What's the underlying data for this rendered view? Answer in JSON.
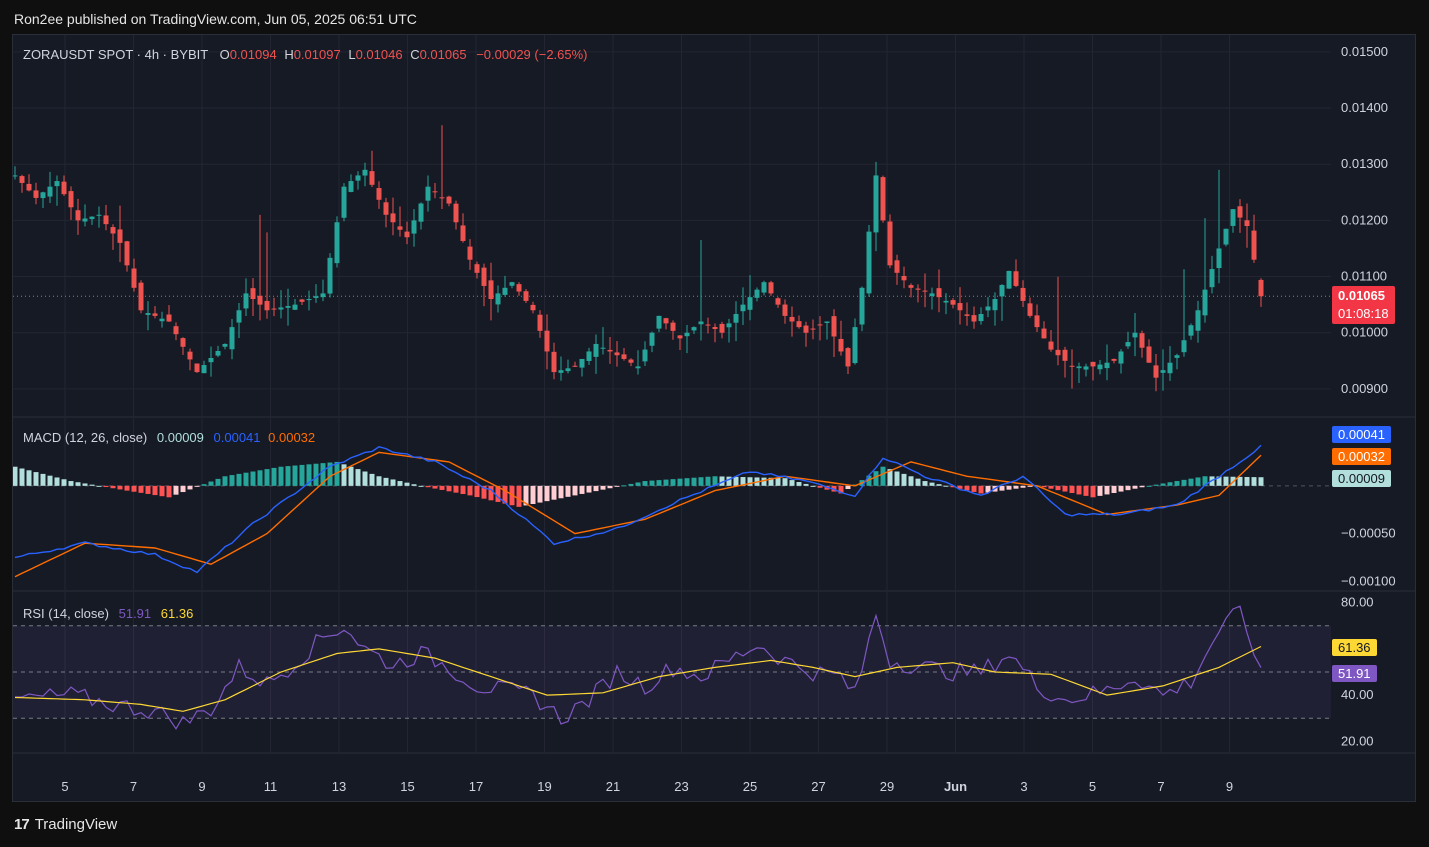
{
  "header": {
    "published": "Ron2ee published on TradingView.com, Jun 05, 2025 06:51 UTC"
  },
  "footer": {
    "brand": "TradingView",
    "logo": "17"
  },
  "legend": {
    "symbol": "ZORAUSDT SPOT · 4h · BYBIT",
    "o_label": "O",
    "o": "0.01094",
    "h_label": "H",
    "h": "0.01097",
    "l_label": "L",
    "l": "0.01046",
    "c_label": "C",
    "c": "0.01065",
    "change": "−0.00029 (−2.65%)",
    "macd_title": "MACD (12, 26, close)",
    "macd_hist": "0.00009",
    "macd_line": "0.00041",
    "macd_signal": "0.00032",
    "rsi_title": "RSI (14, close)",
    "rsi_value": "51.91",
    "rsi_ma": "61.36"
  },
  "tags": {
    "price": "0.01065",
    "countdown": "01:08:18",
    "macd_line": "0.00041",
    "macd_signal": "0.00032",
    "macd_hist": "0.00009",
    "rsi_ma": "61.36",
    "rsi": "51.91"
  },
  "colors": {
    "up": "#26a69a",
    "down": "#ef5350",
    "macd": "#2962ff",
    "signal": "#ff6d00",
    "rsi": "#7e57c2",
    "rsi_ma": "#fdd835",
    "text": "#d1d4dc",
    "grid": "#232632"
  },
  "chart_data": [
    {
      "type": "candlestick",
      "title": "ZORAUSDT SPOT · 4h · BYBIT",
      "ylim": [
        0.0085,
        0.0153
      ],
      "yticks": [
        "0.00900",
        "0.01000",
        "0.01100",
        "0.01200",
        "0.01300",
        "0.01400",
        "0.01500"
      ],
      "xticks": [
        "5",
        "7",
        "9",
        "11",
        "13",
        "15",
        "17",
        "19",
        "21",
        "23",
        "25",
        "27",
        "29",
        "Jun",
        "3",
        "5",
        "7",
        "9"
      ],
      "anchors": [
        [
          0,
          0.0128
        ],
        [
          3,
          0.0124
        ],
        [
          6,
          0.0127
        ],
        [
          9,
          0.012
        ],
        [
          12,
          0.0121
        ],
        [
          15,
          0.0116
        ],
        [
          18,
          0.0104
        ],
        [
          22,
          0.0102
        ],
        [
          26,
          0.0093
        ],
        [
          30,
          0.0098
        ],
        [
          33,
          0.0107
        ],
        [
          36,
          0.0104
        ],
        [
          40,
          0.0105
        ],
        [
          44,
          0.0107
        ],
        [
          47,
          0.0126
        ],
        [
          50,
          0.0129
        ],
        [
          53,
          0.0121
        ],
        [
          56,
          0.0117
        ],
        [
          59,
          0.0126
        ],
        [
          62,
          0.0123
        ],
        [
          65,
          0.0113
        ],
        [
          68,
          0.0106
        ],
        [
          71,
          0.0109
        ],
        [
          74,
          0.0104
        ],
        [
          77,
          0.0093
        ],
        [
          80,
          0.0094
        ],
        [
          83,
          0.0098
        ],
        [
          86,
          0.0096
        ],
        [
          89,
          0.0094
        ],
        [
          92,
          0.0103
        ],
        [
          95,
          0.0099
        ],
        [
          98,
          0.0102
        ],
        [
          101,
          0.01
        ],
        [
          104,
          0.0105
        ],
        [
          107,
          0.0109
        ],
        [
          110,
          0.0103
        ],
        [
          113,
          0.01
        ],
        [
          116,
          0.0102
        ],
        [
          119,
          0.0094
        ],
        [
          121,
          0.0108
        ],
        [
          123,
          0.0128
        ],
        [
          125,
          0.0112
        ],
        [
          128,
          0.0108
        ],
        [
          131,
          0.0107
        ],
        [
          134,
          0.0105
        ],
        [
          137,
          0.0102
        ],
        [
          140,
          0.0106
        ],
        [
          142,
          0.0111
        ],
        [
          145,
          0.0103
        ],
        [
          148,
          0.0097
        ],
        [
          151,
          0.0094
        ],
        [
          154,
          0.0094
        ],
        [
          157,
          0.0095
        ],
        [
          160,
          0.01
        ],
        [
          163,
          0.0092
        ],
        [
          166,
          0.0096
        ],
        [
          169,
          0.0104
        ],
        [
          172,
          0.0115
        ],
        [
          174,
          0.0122
        ],
        [
          176,
          0.0119
        ],
        [
          178,
          0.0107
        ]
      ],
      "last": {
        "open": 0.01094,
        "high": 0.01097,
        "low": 0.01046,
        "close": 0.01065,
        "change": "−0.00029 (−2.65%)"
      }
    },
    {
      "type": "line",
      "title": "MACD (12, 26, close)",
      "ylim": [
        -0.0011,
        0.00072
      ],
      "yticks": [
        "−0.00050",
        "−0.00100"
      ],
      "series": [
        {
          "name": "MACD",
          "anchors": [
            [
              0,
              -0.00075
            ],
            [
              10,
              -0.0006
            ],
            [
              20,
              -0.00072
            ],
            [
              26,
              -0.0009
            ],
            [
              34,
              -0.0004
            ],
            [
              45,
              0.0002
            ],
            [
              52,
              0.0004
            ],
            [
              60,
              0.00025
            ],
            [
              68,
              -5e-05
            ],
            [
              77,
              -0.0006
            ],
            [
              86,
              -0.00045
            ],
            [
              95,
              -0.00015
            ],
            [
              105,
              0.00015
            ],
            [
              113,
              5e-05
            ],
            [
              120,
              -0.0001
            ],
            [
              124,
              0.0003
            ],
            [
              130,
              0.0001
            ],
            [
              138,
              -0.0001
            ],
            [
              144,
              0.0001
            ],
            [
              150,
              -0.0003
            ],
            [
              158,
              -0.0003
            ],
            [
              166,
              -0.0002
            ],
            [
              172,
              0.0001
            ],
            [
              178,
              0.00041
            ]
          ]
        },
        {
          "name": "Signal",
          "anchors": [
            [
              0,
              -0.00095
            ],
            [
              10,
              -0.0006
            ],
            [
              20,
              -0.00065
            ],
            [
              28,
              -0.00082
            ],
            [
              36,
              -0.0005
            ],
            [
              45,
              0.0001
            ],
            [
              52,
              0.00035
            ],
            [
              62,
              0.00025
            ],
            [
              70,
              -5e-05
            ],
            [
              80,
              -0.0005
            ],
            [
              90,
              -0.00035
            ],
            [
              100,
              -5e-05
            ],
            [
              110,
              0.0001
            ],
            [
              120,
              0.0
            ],
            [
              128,
              0.00025
            ],
            [
              136,
              0.0001
            ],
            [
              146,
              0.0
            ],
            [
              156,
              -0.0003
            ],
            [
              166,
              -0.0002
            ],
            [
              172,
              -0.0001
            ],
            [
              178,
              0.00032
            ]
          ]
        },
        {
          "name": "Histogram",
          "anchors": [
            [
              0,
              0.0002
            ],
            [
              8,
              5e-05
            ],
            [
              16,
              -5e-05
            ],
            [
              22,
              -0.00012
            ],
            [
              30,
              0.0001
            ],
            [
              38,
              0.0002
            ],
            [
              46,
              0.00025
            ],
            [
              52,
              0.0001
            ],
            [
              58,
              0.0
            ],
            [
              65,
              -0.0001
            ],
            [
              72,
              -0.00022
            ],
            [
              80,
              -0.0001
            ],
            [
              90,
              5e-05
            ],
            [
              100,
              0.0001
            ],
            [
              110,
              8e-05
            ],
            [
              118,
              -8e-05
            ],
            [
              124,
              0.0002
            ],
            [
              130,
              5e-05
            ],
            [
              138,
              -8e-05
            ],
            [
              146,
              0.0
            ],
            [
              154,
              -0.00012
            ],
            [
              162,
              0.0
            ],
            [
              170,
              0.0001
            ],
            [
              178,
              9e-05
            ]
          ]
        }
      ]
    },
    {
      "type": "line",
      "title": "RSI (14, close)",
      "ylim": [
        15,
        85
      ],
      "yticks": [
        "80.00",
        "40.00",
        "20.00"
      ],
      "bands": [
        30,
        50,
        70
      ],
      "series": [
        {
          "name": "RSI",
          "anchors": [
            [
              0,
              38
            ],
            [
              8,
              40
            ],
            [
              14,
              36
            ],
            [
              20,
              33
            ],
            [
              24,
              28
            ],
            [
              28,
              34
            ],
            [
              32,
              52
            ],
            [
              36,
              45
            ],
            [
              40,
              54
            ],
            [
              44,
              65
            ],
            [
              47,
              70
            ],
            [
              50,
              60
            ],
            [
              54,
              53
            ],
            [
              58,
              58
            ],
            [
              62,
              52
            ],
            [
              66,
              44
            ],
            [
              70,
              42
            ],
            [
              74,
              40
            ],
            [
              78,
              30
            ],
            [
              82,
              38
            ],
            [
              86,
              50
            ],
            [
              90,
              44
            ],
            [
              94,
              52
            ],
            [
              98,
              48
            ],
            [
              102,
              55
            ],
            [
              106,
              62
            ],
            [
              110,
              55
            ],
            [
              114,
              50
            ],
            [
              118,
              48
            ],
            [
              120,
              40
            ],
            [
              123,
              75
            ],
            [
              125,
              55
            ],
            [
              130,
              52
            ],
            [
              134,
              50
            ],
            [
              138,
              50
            ],
            [
              142,
              58
            ],
            [
              146,
              44
            ],
            [
              150,
              38
            ],
            [
              156,
              42
            ],
            [
              160,
              48
            ],
            [
              164,
              40
            ],
            [
              168,
              46
            ],
            [
              172,
              68
            ],
            [
              175,
              76
            ],
            [
              178,
              52
            ]
          ]
        },
        {
          "name": "RSI MA",
          "anchors": [
            [
              0,
              39
            ],
            [
              10,
              38
            ],
            [
              18,
              36
            ],
            [
              24,
              33
            ],
            [
              30,
              38
            ],
            [
              38,
              50
            ],
            [
              46,
              58
            ],
            [
              52,
              60
            ],
            [
              60,
              56
            ],
            [
              68,
              48
            ],
            [
              76,
              40
            ],
            [
              84,
              41
            ],
            [
              92,
              48
            ],
            [
              100,
              52
            ],
            [
              108,
              55
            ],
            [
              114,
              52
            ],
            [
              120,
              48
            ],
            [
              126,
              52
            ],
            [
              134,
              54
            ],
            [
              140,
              50
            ],
            [
              148,
              49
            ],
            [
              156,
              40
            ],
            [
              164,
              44
            ],
            [
              172,
              52
            ],
            [
              178,
              61
            ]
          ]
        }
      ]
    }
  ]
}
